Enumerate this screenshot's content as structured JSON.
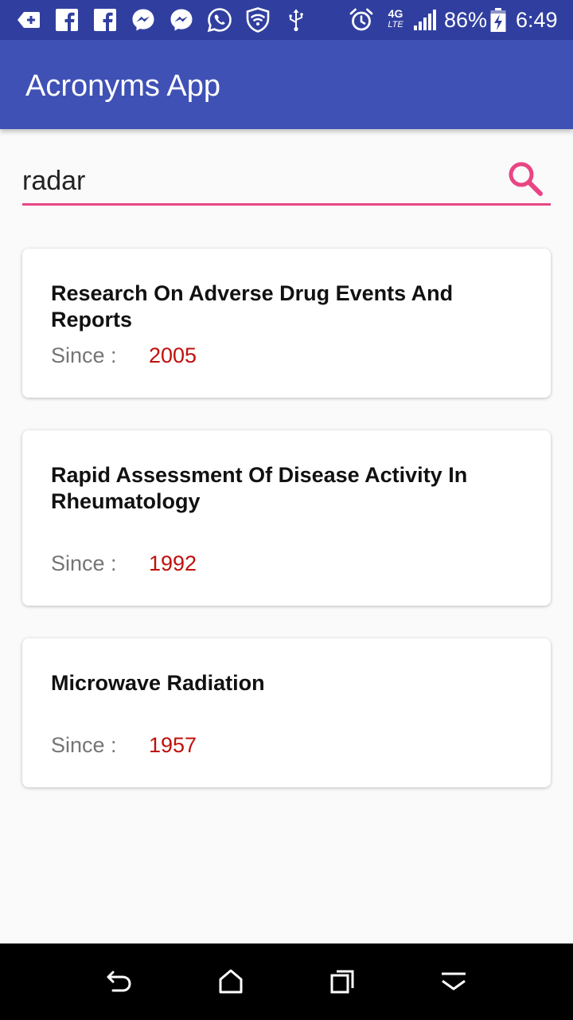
{
  "status_bar": {
    "battery_text": "86%",
    "time": "6:49",
    "network_label": "4G",
    "network_sub": "LTE",
    "icons": [
      "plus-badge-icon",
      "facebook-icon",
      "facebook-icon",
      "messenger-icon",
      "messenger-icon",
      "whatsapp-icon",
      "shield-icon",
      "usb-icon",
      "alarm-icon",
      "signal-icon",
      "battery-icon"
    ]
  },
  "app_bar": {
    "title": "Acronyms App"
  },
  "search": {
    "value": "radar",
    "icon": "search-icon"
  },
  "results": [
    {
      "title": "Research On Adverse Drug Events And Reports",
      "since_label": "Since :",
      "since": "2005"
    },
    {
      "title": "Rapid Assessment Of Disease Activity In Rheumatology",
      "since_label": "Since :",
      "since": "1992"
    },
    {
      "title": "Microwave Radiation",
      "since_label": "Since :",
      "since": "1957"
    }
  ],
  "nav_bar": {
    "icons": [
      "back-icon",
      "home-icon",
      "recents-icon",
      "hide-nav-icon"
    ]
  },
  "colors": {
    "status_bar": "#303f9f",
    "app_bar": "#3f51b5",
    "accent": "#e94584",
    "year": "#c0100c"
  }
}
